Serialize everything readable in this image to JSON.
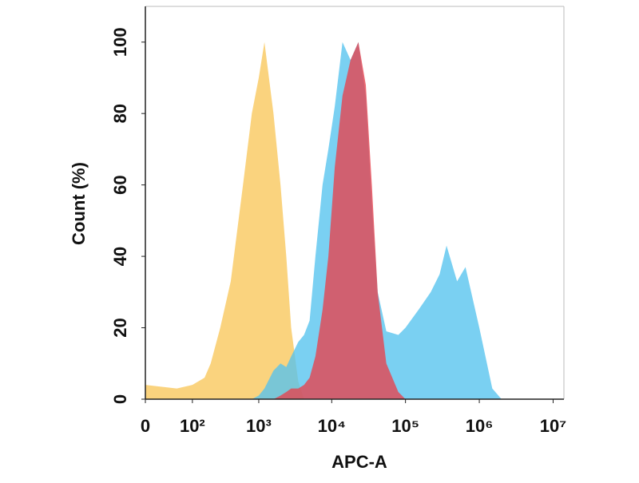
{
  "chart_data": {
    "type": "area",
    "x_label": "APC-A",
    "y_label": "Count  (%)",
    "xscale": "symlog",
    "x": [
      0,
      50,
      100,
      160,
      200,
      280,
      400,
      600,
      800,
      1000,
      1200,
      1600,
      2000,
      2400,
      2800,
      3500,
      4200,
      5000,
      6000,
      7500,
      9000,
      11000,
      14000,
      18000,
      23000,
      29000,
      35000,
      42000,
      55000,
      80000,
      100000,
      150000,
      220000,
      290000,
      360000,
      500000,
      650000,
      1000000,
      1500000,
      2000000
    ],
    "series": [
      {
        "color": "#f8c75a",
        "values": [
          4,
          3,
          4,
          6,
          10,
          20,
          33,
          60,
          80,
          90,
          100,
          80,
          60,
          40,
          20,
          5,
          0,
          0,
          0,
          0,
          0,
          0,
          0,
          0,
          0,
          0,
          0,
          0,
          0,
          0,
          0,
          0,
          0,
          0,
          0,
          0,
          0,
          0,
          0,
          0
        ]
      },
      {
        "color": "#55c3ee",
        "values": [
          0,
          0,
          0,
          0,
          0,
          0,
          0,
          0,
          0,
          1,
          3,
          8,
          10,
          9,
          12,
          16,
          18,
          22,
          40,
          60,
          70,
          82,
          100,
          95,
          100,
          85,
          55,
          30,
          19,
          18,
          20,
          25,
          30,
          35,
          43,
          33,
          37,
          20,
          3,
          0
        ]
      },
      {
        "color": "#e8404c",
        "values": [
          0,
          0,
          0,
          0,
          0,
          0,
          0,
          0,
          0,
          0,
          0,
          0,
          1,
          2,
          3,
          3,
          4,
          6,
          12,
          25,
          40,
          65,
          85,
          95,
          100,
          88,
          60,
          30,
          10,
          2,
          0,
          0,
          0,
          0,
          0,
          0,
          0,
          0,
          0,
          0
        ]
      }
    ],
    "xlim": [
      0,
      14000000
    ],
    "xticks": [
      0,
      {
        "value": 100,
        "label": "10²"
      },
      {
        "value": 1000,
        "label": "10³"
      },
      {
        "value": 10000,
        "label": "10⁴"
      },
      {
        "value": 100000,
        "label": "10⁵"
      },
      {
        "value": 1000000,
        "label": "10⁶"
      },
      {
        "value": 10000000,
        "label": "10⁷"
      }
    ],
    "ylim": [
      0,
      110
    ],
    "yticks": [
      0,
      20,
      40,
      60,
      80,
      100
    ]
  }
}
